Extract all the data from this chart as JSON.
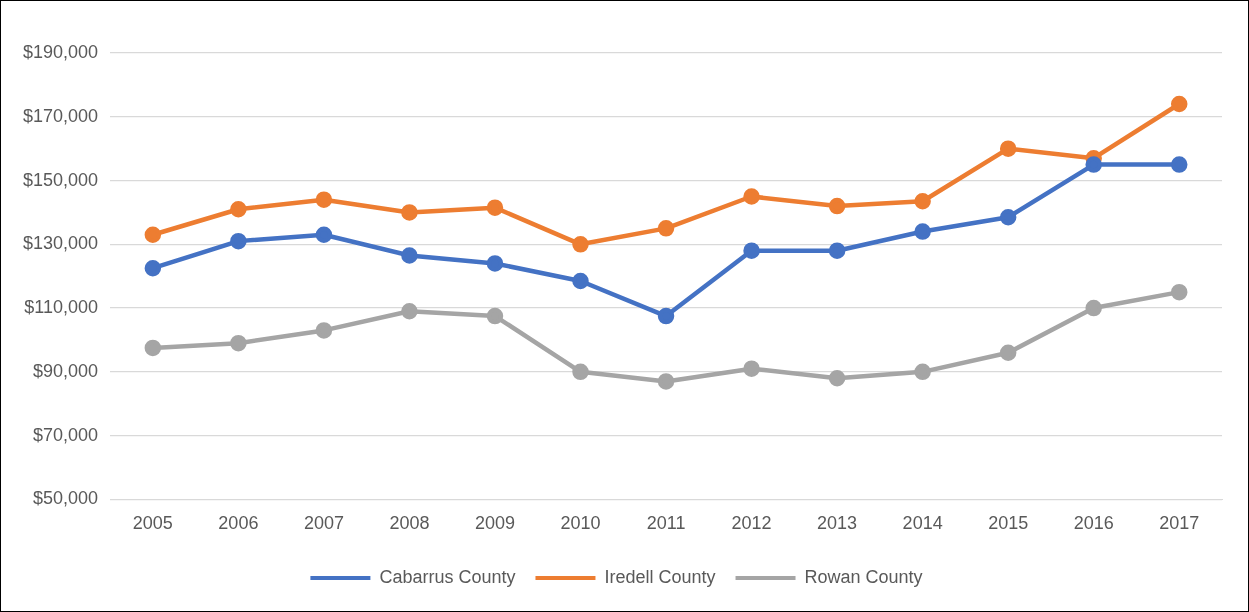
{
  "chart_data": {
    "type": "line",
    "categories": [
      "2005",
      "2006",
      "2007",
      "2008",
      "2009",
      "2010",
      "2011",
      "2012",
      "2013",
      "2014",
      "2015",
      "2016",
      "2017"
    ],
    "series": [
      {
        "name": "Cabarrus County",
        "color": "#4472c4",
        "values": [
          122500,
          131000,
          133000,
          126500,
          124000,
          118500,
          107500,
          128000,
          128000,
          134000,
          138500,
          155000,
          155000
        ]
      },
      {
        "name": "Iredell County",
        "color": "#ed7d31",
        "values": [
          133000,
          141000,
          144000,
          140000,
          141500,
          130000,
          135000,
          145000,
          142000,
          143500,
          160000,
          157000,
          174000
        ]
      },
      {
        "name": "Rowan County",
        "color": "#a5a5a5",
        "values": [
          97500,
          99000,
          103000,
          109000,
          107500,
          90000,
          87000,
          91000,
          88000,
          90000,
          96000,
          110000,
          115000
        ]
      }
    ],
    "ylim": [
      50000,
      190000
    ],
    "yticks": [
      {
        "value": 50000,
        "label": "$50,000"
      },
      {
        "value": 70000,
        "label": "$70,000"
      },
      {
        "value": 90000,
        "label": "$90,000"
      },
      {
        "value": 110000,
        "label": "$110,000"
      },
      {
        "value": 130000,
        "label": "$130,000"
      },
      {
        "value": 150000,
        "label": "$150,000"
      },
      {
        "value": 170000,
        "label": "$170,000"
      },
      {
        "value": 190000,
        "label": "$190,000"
      }
    ],
    "grid": "y",
    "legend": "bottom",
    "marker": "circle",
    "line_style": "solid"
  }
}
